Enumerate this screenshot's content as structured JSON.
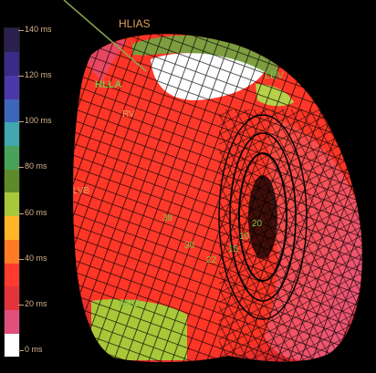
{
  "colorbar": {
    "ticks": [
      "140 ms",
      "120 ms",
      "100 ms",
      "80 ms",
      "60 ms",
      "40 ms",
      "20 ms",
      "0 ms"
    ],
    "colors": [
      "#ffffff",
      "#e0507a",
      "#e2343a",
      "#ff3b2d",
      "#ff7b24",
      "#ffb526",
      "#a8c83a",
      "#5f8a2a",
      "#49a25a",
      "#3fa7ad",
      "#3c66b9",
      "#4c38a8",
      "#3a2c86",
      "#2b204f"
    ]
  },
  "labels": {
    "hlias": "HLIAS",
    "hlla": "HLLA",
    "rv": "RV",
    "lpv": "LPV",
    "lvb": "LVB",
    "aro": "ARO",
    "n38": "38",
    "n36": "36",
    "n20": "20",
    "n19": "19",
    "n22": "22",
    "n15": "15"
  },
  "colors": {
    "background": "#000000",
    "surface_red": "#ff3b2d",
    "surface_pink": "#ea5a86",
    "surface_green": "#a8c83a",
    "label_orange": "#e3a05a",
    "label_green": "#7fbf4a"
  }
}
